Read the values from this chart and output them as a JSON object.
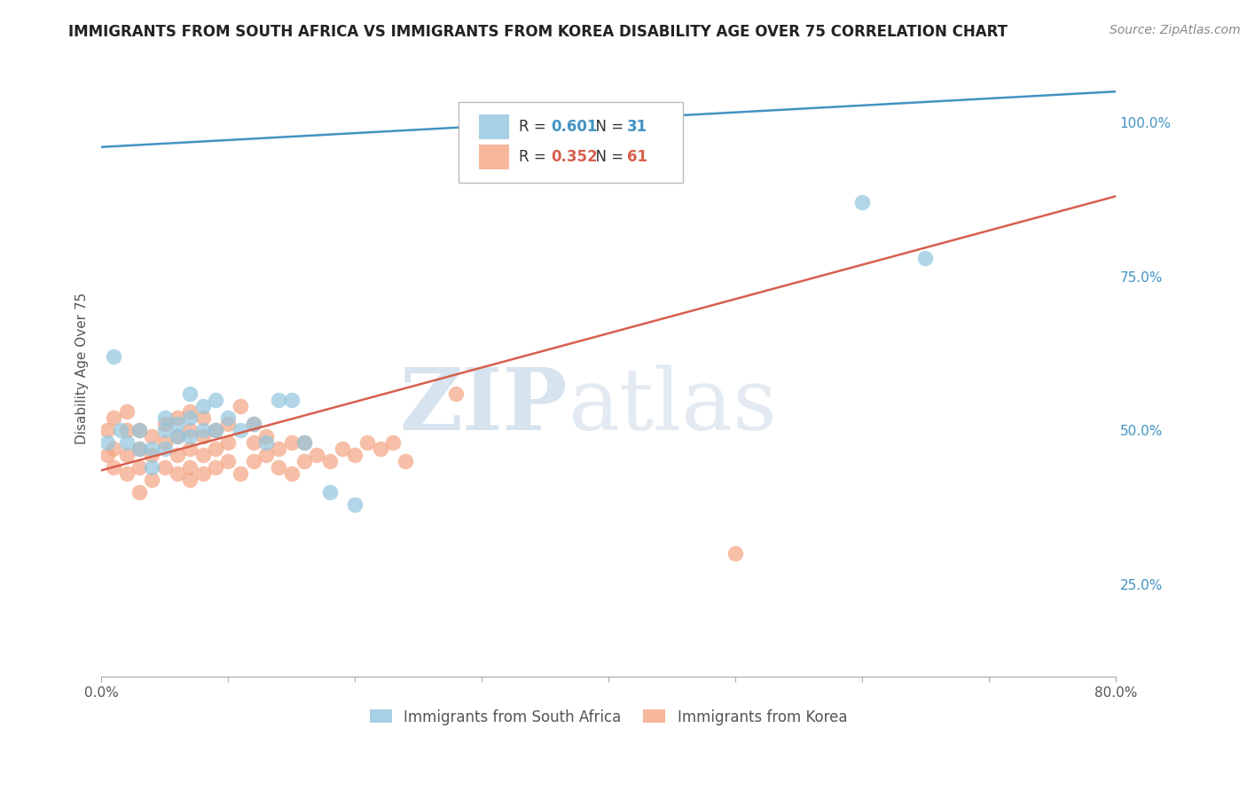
{
  "title": "IMMIGRANTS FROM SOUTH AFRICA VS IMMIGRANTS FROM KOREA DISABILITY AGE OVER 75 CORRELATION CHART",
  "source": "Source: ZipAtlas.com",
  "ylabel": "Disability Age Over 75",
  "xlim": [
    0.0,
    0.8
  ],
  "ylim": [
    0.1,
    1.1
  ],
  "xtick_positions": [
    0.0,
    0.1,
    0.2,
    0.3,
    0.4,
    0.5,
    0.6,
    0.7,
    0.8
  ],
  "xticklabels_show": [
    "0.0%",
    "",
    "",
    "",
    "",
    "",
    "",
    "",
    "80.0%"
  ],
  "yticks_right": [
    0.25,
    0.5,
    0.75,
    1.0
  ],
  "yticklabels_right": [
    "25.0%",
    "50.0%",
    "75.0%",
    "100.0%"
  ],
  "blue_color": "#92c5de",
  "blue_line_color": "#4393c3",
  "pink_color": "#f4a582",
  "pink_line_color": "#d6604d",
  "blue_R": 0.601,
  "blue_N": 31,
  "pink_R": 0.352,
  "pink_N": 61,
  "legend_label_blue": "Immigrants from South Africa",
  "legend_label_pink": "Immigrants from Korea",
  "watermark_zip": "ZIP",
  "watermark_atlas": "atlas",
  "blue_scatter_x": [
    0.005,
    0.01,
    0.015,
    0.02,
    0.03,
    0.03,
    0.04,
    0.04,
    0.05,
    0.05,
    0.05,
    0.06,
    0.06,
    0.07,
    0.07,
    0.07,
    0.08,
    0.08,
    0.09,
    0.09,
    0.1,
    0.11,
    0.12,
    0.13,
    0.14,
    0.15,
    0.16,
    0.18,
    0.2,
    0.6,
    0.65
  ],
  "blue_scatter_y": [
    0.48,
    0.62,
    0.5,
    0.48,
    0.47,
    0.5,
    0.44,
    0.47,
    0.5,
    0.47,
    0.52,
    0.51,
    0.49,
    0.52,
    0.49,
    0.56,
    0.5,
    0.54,
    0.55,
    0.5,
    0.52,
    0.5,
    0.51,
    0.48,
    0.55,
    0.55,
    0.48,
    0.4,
    0.38,
    0.87,
    0.78
  ],
  "pink_scatter_x": [
    0.005,
    0.005,
    0.01,
    0.01,
    0.01,
    0.02,
    0.02,
    0.02,
    0.02,
    0.03,
    0.03,
    0.03,
    0.03,
    0.04,
    0.04,
    0.04,
    0.05,
    0.05,
    0.05,
    0.06,
    0.06,
    0.06,
    0.06,
    0.07,
    0.07,
    0.07,
    0.07,
    0.07,
    0.08,
    0.08,
    0.08,
    0.08,
    0.09,
    0.09,
    0.09,
    0.1,
    0.1,
    0.1,
    0.11,
    0.11,
    0.12,
    0.12,
    0.12,
    0.13,
    0.13,
    0.14,
    0.14,
    0.15,
    0.15,
    0.16,
    0.16,
    0.17,
    0.18,
    0.19,
    0.2,
    0.21,
    0.22,
    0.23,
    0.24,
    0.28,
    0.5
  ],
  "pink_scatter_y": [
    0.46,
    0.5,
    0.44,
    0.47,
    0.52,
    0.43,
    0.46,
    0.5,
    0.53,
    0.4,
    0.44,
    0.47,
    0.5,
    0.42,
    0.46,
    0.49,
    0.44,
    0.48,
    0.51,
    0.43,
    0.46,
    0.49,
    0.52,
    0.42,
    0.44,
    0.47,
    0.5,
    0.53,
    0.43,
    0.46,
    0.49,
    0.52,
    0.44,
    0.47,
    0.5,
    0.45,
    0.48,
    0.51,
    0.43,
    0.54,
    0.45,
    0.48,
    0.51,
    0.46,
    0.49,
    0.44,
    0.47,
    0.43,
    0.48,
    0.45,
    0.48,
    0.46,
    0.45,
    0.47,
    0.46,
    0.48,
    0.47,
    0.48,
    0.45,
    0.56,
    0.3
  ],
  "blue_line_x": [
    0.0,
    0.8
  ],
  "blue_line_y": [
    0.96,
    1.05
  ],
  "pink_line_x": [
    0.0,
    0.8
  ],
  "pink_line_y": [
    0.435,
    0.88
  ],
  "grid_color": "#cccccc",
  "background_color": "#ffffff",
  "title_fontsize": 12,
  "axis_label_fontsize": 11,
  "tick_fontsize": 11,
  "source_fontsize": 10
}
